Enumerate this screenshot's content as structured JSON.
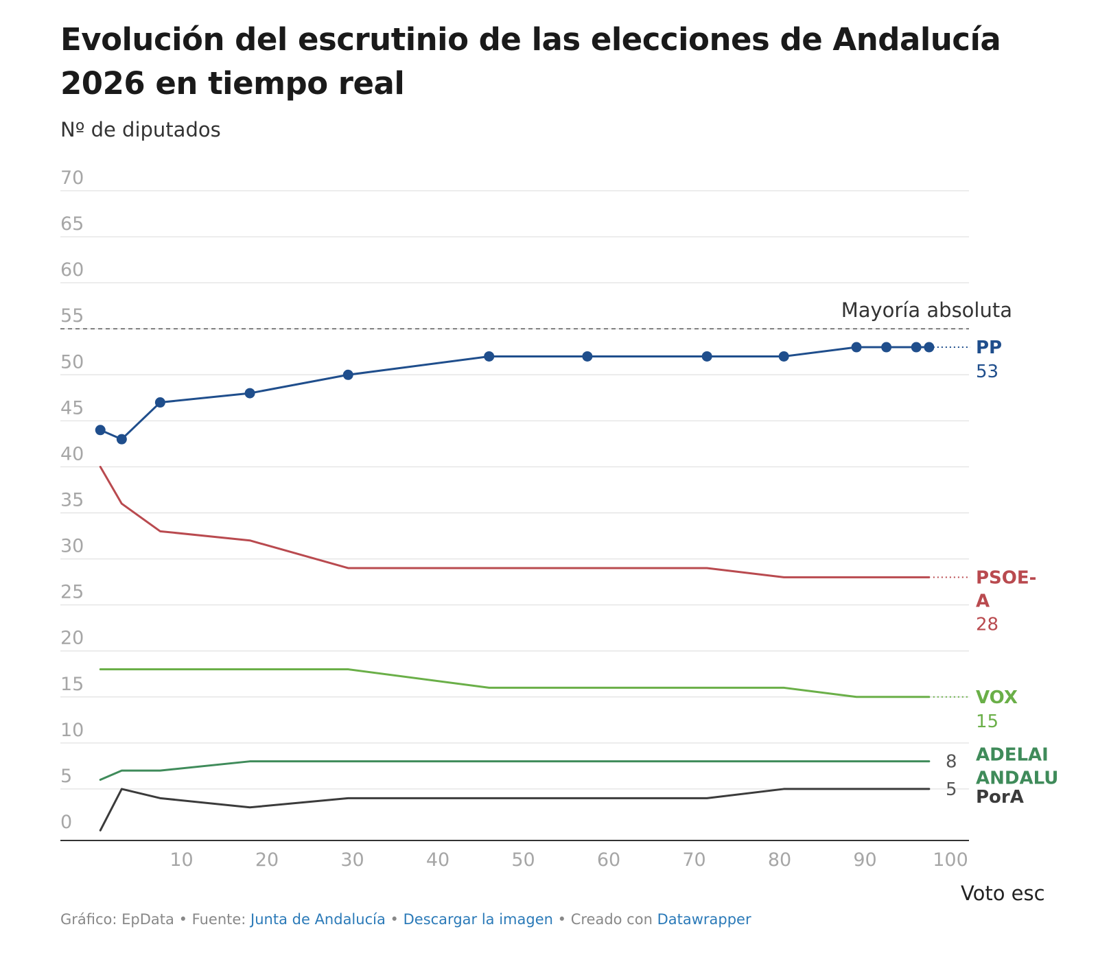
{
  "chart_data": {
    "type": "line",
    "title": "Evolución del escrutinio de las elecciones de Andalucía 2026 en tiempo real",
    "ylabel": "Nº de diputados",
    "xlabel": "Voto esc",
    "ylim": [
      0,
      70
    ],
    "xlim": [
      0,
      100
    ],
    "y_ticks": [
      0,
      5,
      10,
      15,
      20,
      25,
      30,
      35,
      40,
      45,
      50,
      55,
      60,
      65,
      70
    ],
    "x_ticks": [
      10,
      20,
      30,
      40,
      50,
      60,
      70,
      80,
      90,
      100
    ],
    "grid": true,
    "reference_line": {
      "label": "Mayoría absoluta",
      "value": 55
    },
    "series": [
      {
        "name": "PP",
        "end_label": "53",
        "color": "#1f4e8c",
        "markers": true,
        "x": [
          0.5,
          3,
          7.5,
          18,
          29.5,
          46,
          57.5,
          71.5,
          80.5,
          89,
          92.5,
          96,
          97.5
        ],
        "values": [
          44,
          43,
          47,
          48,
          50,
          52,
          52,
          52,
          52,
          53,
          53,
          53,
          53
        ]
      },
      {
        "name": "PSOE-A",
        "end_label": "28",
        "color": "#b94a4f",
        "markers": false,
        "x": [
          0.5,
          3,
          7.5,
          18,
          29.5,
          46,
          57.5,
          71.5,
          80.5,
          89,
          97.5
        ],
        "values": [
          40,
          36,
          33,
          32,
          29,
          29,
          29,
          29,
          28,
          28,
          28
        ]
      },
      {
        "name": "VOX",
        "end_label": "15",
        "color": "#6aaf48",
        "markers": false,
        "x": [
          0.5,
          29.5,
          46,
          80.5,
          89,
          97.5
        ],
        "values": [
          18,
          18,
          16,
          16,
          15,
          15
        ]
      },
      {
        "name": "ADELAI ANDALU",
        "end_label": "8",
        "color": "#3f8b5a",
        "markers": false,
        "x": [
          0.5,
          3,
          7.5,
          18,
          29.5,
          97.5
        ],
        "values": [
          6,
          7,
          7,
          8,
          8,
          8
        ]
      },
      {
        "name": "PorA",
        "end_label": "5",
        "color": "#3b3b3b",
        "markers": false,
        "x": [
          0.5,
          3,
          7.5,
          18,
          29.5,
          71.5,
          80.5,
          97.5
        ],
        "values": [
          0.5,
          5,
          4,
          3,
          4,
          4,
          5,
          5
        ]
      }
    ]
  },
  "footer": {
    "chart_by": "Gráfico: EpData",
    "source_prefix": "Fuente:",
    "source_link": "Junta de Andalucía",
    "download_link": "Descargar la imagen",
    "created_prefix": "Creado con",
    "created_link": "Datawrapper",
    "separator": "•"
  }
}
